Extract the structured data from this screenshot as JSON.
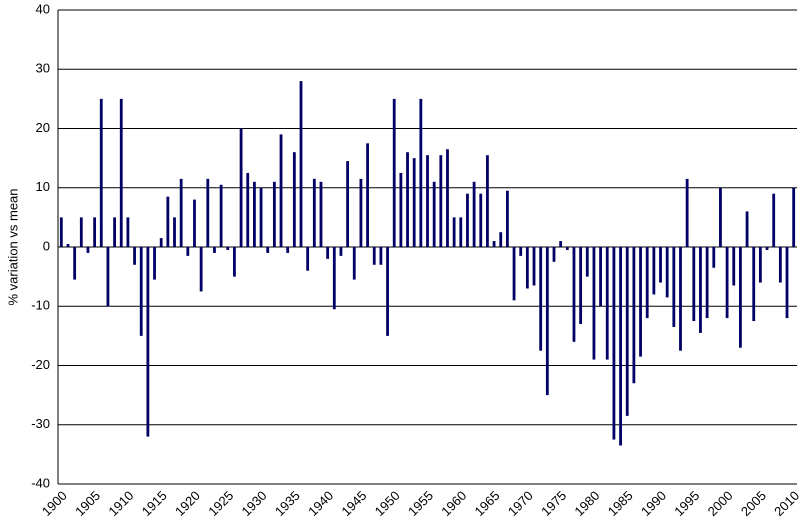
{
  "chart_data": {
    "type": "bar",
    "y_label": "% variation vs mean",
    "categories": [
      "1900",
      null,
      null,
      null,
      null,
      "1905",
      null,
      null,
      null,
      null,
      "1910",
      null,
      null,
      null,
      null,
      "1915",
      null,
      null,
      null,
      null,
      "1920",
      null,
      null,
      null,
      null,
      "1925",
      null,
      null,
      null,
      null,
      "1930",
      null,
      null,
      null,
      null,
      "1935",
      null,
      null,
      null,
      null,
      "1940",
      null,
      null,
      null,
      null,
      "1945",
      null,
      null,
      null,
      null,
      "1950",
      null,
      null,
      null,
      null,
      "1955",
      null,
      null,
      null,
      null,
      "1960",
      null,
      null,
      null,
      null,
      "1965",
      null,
      null,
      null,
      null,
      "1970",
      null,
      null,
      null,
      null,
      "1975",
      null,
      null,
      null,
      null,
      "1980",
      null,
      null,
      null,
      null,
      "1985",
      null,
      null,
      null,
      null,
      "1990",
      null,
      null,
      null,
      null,
      "1995",
      null,
      null,
      null,
      null,
      "2000",
      null,
      null,
      null,
      null,
      "2005",
      null,
      null,
      null,
      null,
      "2010"
    ],
    "values": [
      5,
      0.5,
      -5.5,
      5,
      -1,
      5,
      25,
      -10,
      5,
      25,
      5,
      -3,
      -15,
      -32,
      -5.5,
      1.5,
      8.5,
      5,
      11.5,
      -1.5,
      8,
      -7.5,
      11.5,
      -1,
      10.5,
      -0.5,
      -5,
      20,
      12.5,
      11,
      10,
      -1,
      11,
      19,
      -1,
      16,
      28,
      -4,
      11.5,
      11,
      -2,
      -10.5,
      -1.5,
      14.5,
      -5.5,
      11.5,
      17.5,
      -3,
      -3,
      -15,
      25,
      12.5,
      16,
      15,
      25,
      15.5,
      11,
      15.5,
      16.5,
      5,
      5,
      9,
      11,
      9,
      15.5,
      1,
      2.5,
      9.5,
      -9,
      -1.5,
      -7,
      -6.5,
      -17.5,
      -25,
      -2.5,
      1,
      -0.5,
      -16,
      -13,
      -5,
      -19,
      -10,
      -19,
      -32.5,
      -33.5,
      -28.5,
      -23,
      -18.5,
      -12,
      -8,
      -6,
      -8.5,
      -13.5,
      -17.5,
      11.5,
      -12.5,
      -14.5,
      -12,
      -3.5,
      10,
      -12,
      -6.5,
      -17,
      6,
      -12.5,
      -6,
      -0.5,
      9,
      -6,
      -12,
      10
    ],
    "color": "#000066",
    "ylim": [
      -40,
      40
    ],
    "yticks": [
      -40,
      -30,
      -20,
      -10,
      0,
      10,
      20,
      30,
      40
    ],
    "grid": true
  }
}
